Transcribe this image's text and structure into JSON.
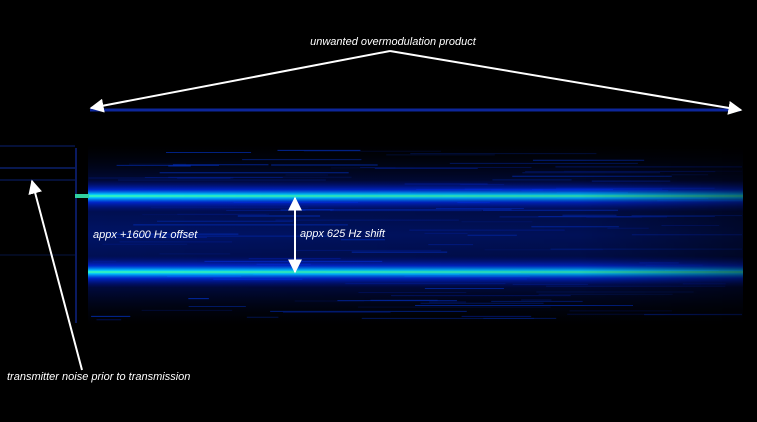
{
  "annotations": {
    "top": "unwanted overmodulation product",
    "offset": "appx +1600 Hz offset",
    "shift": "appx 625 Hz shift",
    "noise": "transmitter noise prior to transmission"
  }
}
